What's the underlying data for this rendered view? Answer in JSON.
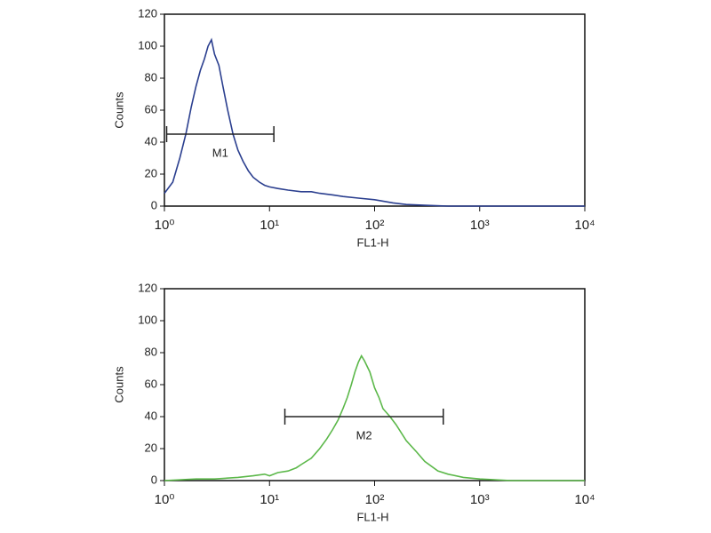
{
  "chart_data": [
    {
      "type": "line",
      "xlabel": "FL1-H",
      "ylabel": "Counts",
      "xscale": "log",
      "xlim": [
        1,
        10000
      ],
      "ylim": [
        0,
        120
      ],
      "xticks": [
        {
          "value": 1,
          "label": "10⁰"
        },
        {
          "value": 10,
          "label": "10¹"
        },
        {
          "value": 100,
          "label": "10²"
        },
        {
          "value": 1000,
          "label": "10³"
        },
        {
          "value": 10000,
          "label": "10⁴"
        }
      ],
      "yticks": [
        0,
        20,
        40,
        60,
        80,
        100,
        120
      ],
      "series": [
        {
          "name": null,
          "color": "#2b3f8f",
          "x": [
            1,
            1.2,
            1.4,
            1.6,
            1.8,
            2,
            2.2,
            2.4,
            2.6,
            2.8,
            3,
            3.3,
            3.6,
            4,
            4.5,
            5,
            5.6,
            6.3,
            7,
            8,
            9,
            10,
            12,
            15,
            20,
            25,
            30,
            40,
            50,
            70,
            100,
            150,
            200,
            300,
            500,
            1000,
            10000
          ],
          "values": [
            8,
            15,
            30,
            45,
            62,
            75,
            85,
            92,
            100,
            104,
            95,
            88,
            75,
            60,
            45,
            35,
            28,
            22,
            18,
            15,
            13,
            12,
            11,
            10,
            9,
            9,
            8,
            7,
            6,
            5,
            4,
            2,
            1,
            0.5,
            0,
            0,
            0
          ]
        }
      ],
      "gate": {
        "label": "M1",
        "x": [
          1.05,
          11
        ],
        "y": 45
      }
    },
    {
      "type": "line",
      "xlabel": "FL1-H",
      "ylabel": "Counts",
      "xscale": "log",
      "xlim": [
        1,
        10000
      ],
      "ylim": [
        0,
        120
      ],
      "xticks": [
        {
          "value": 1,
          "label": "10⁰"
        },
        {
          "value": 10,
          "label": "10¹"
        },
        {
          "value": 100,
          "label": "10²"
        },
        {
          "value": 1000,
          "label": "10³"
        },
        {
          "value": 10000,
          "label": "10⁴"
        }
      ],
      "yticks": [
        0,
        20,
        40,
        60,
        80,
        100,
        120
      ],
      "series": [
        {
          "name": null,
          "color": "#5cb84a",
          "x": [
            1,
            2,
            3,
            5,
            7,
            9,
            10,
            12,
            15,
            18,
            20,
            25,
            30,
            35,
            40,
            45,
            50,
            55,
            60,
            65,
            70,
            75,
            80,
            90,
            100,
            110,
            120,
            140,
            160,
            200,
            250,
            300,
            400,
            500,
            700,
            1000,
            2000,
            10000
          ],
          "values": [
            0,
            1,
            1,
            2,
            3,
            4,
            3,
            5,
            6,
            8,
            10,
            14,
            20,
            26,
            32,
            38,
            45,
            52,
            60,
            68,
            74,
            78,
            75,
            68,
            58,
            52,
            45,
            40,
            35,
            25,
            18,
            12,
            6,
            4,
            2,
            1,
            0,
            0
          ]
        }
      ],
      "gate": {
        "label": "M2",
        "x": [
          14,
          450
        ],
        "y": 40
      }
    }
  ]
}
